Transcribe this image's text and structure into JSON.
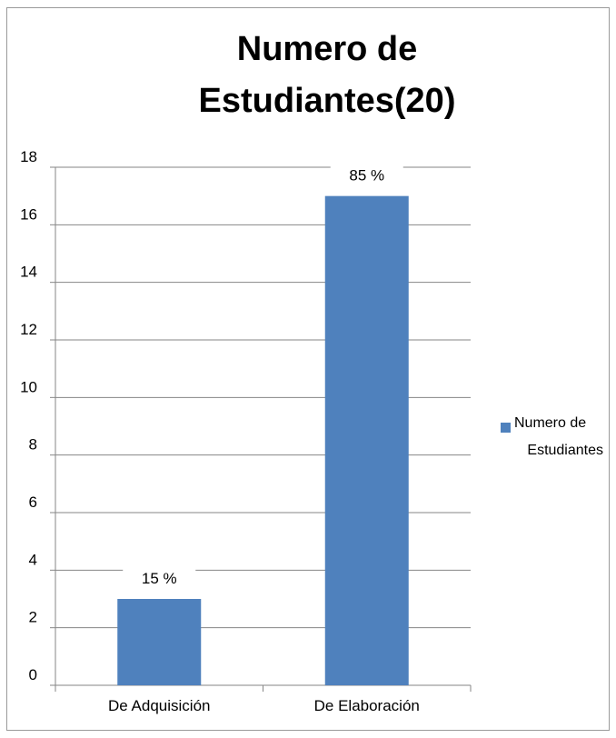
{
  "chart_data": {
    "type": "bar",
    "title": "Numero de Estudiantes(20)",
    "categories": [
      "De Adquisición",
      "De Elaboración"
    ],
    "series": [
      {
        "name": "Numero de Estudiantes",
        "values": [
          3,
          17
        ],
        "data_labels": [
          "15 %",
          "85 %"
        ],
        "color": "#4F81BD"
      }
    ],
    "ylim": [
      0,
      18
    ],
    "y_ticks": [
      0,
      2,
      4,
      6,
      8,
      10,
      12,
      14,
      16,
      18
    ],
    "grid": true,
    "legend_position": "right",
    "gridline_color": "#868686"
  }
}
